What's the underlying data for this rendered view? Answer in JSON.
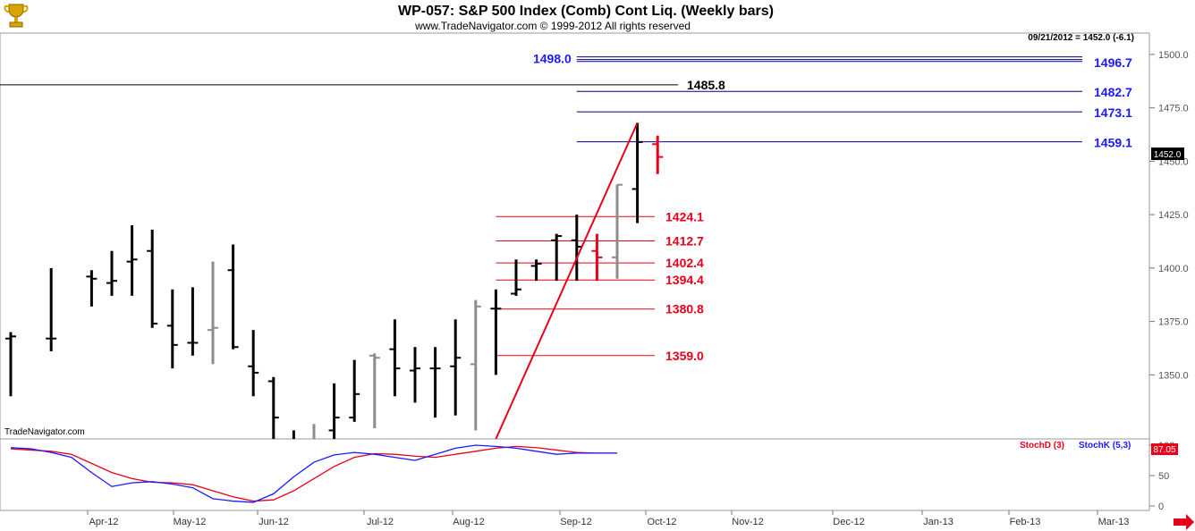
{
  "logo": {
    "name": "trophy-logo"
  },
  "header": {
    "title": "WP-057:  S&P 500 Index (Comb) Cont Liq.  (Weekly bars)",
    "subtitle": "www.TradeNavigator.com © 1999-2012 All rights reserved"
  },
  "info": {
    "date_readout": "09/21/2012 = 1452.0 (-6.1)",
    "price_box": "1452.0",
    "watermark": "TradeNavigator.com"
  },
  "colors": {
    "up_bar": "#000000",
    "gray_bar": "#8c8c8c",
    "red": "#e8001a",
    "blue": "#1a1aff",
    "navy": "#000080",
    "stoch_d": "#e8001a",
    "stoch_k": "#1a1aff"
  },
  "chart_data": [
    {
      "type": "ohlc",
      "title": "WP-057:  S&P 500 Index (Comb) Cont Liq.  (Weekly bars)",
      "ylim": [
        1320,
        1510
      ],
      "y_ticks": [
        "1500.0",
        "1475.0",
        "1450.0",
        "1425.0",
        "1400.0",
        "1375.0",
        "1350.0"
      ],
      "x_labels": [
        "Apr-12",
        "May-12",
        "Jun-12",
        "Jul-12",
        "Aug-12",
        "Sep-12",
        "Oct-12",
        "Nov-12",
        "Dec-12",
        "Jan-13",
        "Feb-13",
        "Mar-13"
      ],
      "bars": [
        {
          "w": 0,
          "o": 1367,
          "h": 1370,
          "l": 1340,
          "c": 1368,
          "style": "black"
        },
        {
          "w": 2,
          "o": 1367,
          "h": 1400,
          "l": 1361,
          "c": 1367,
          "style": "black"
        },
        {
          "w": 4,
          "o": 1396,
          "h": 1399,
          "l": 1382,
          "c": 1395,
          "style": "black"
        },
        {
          "w": 5,
          "o": 1393,
          "h": 1408,
          "l": 1387,
          "c": 1394,
          "style": "black"
        },
        {
          "w": 6,
          "o": 1403,
          "h": 1420,
          "l": 1387,
          "c": 1404,
          "style": "black"
        },
        {
          "w": 7,
          "o": 1408,
          "h": 1418,
          "l": 1372,
          "c": 1374,
          "style": "black"
        },
        {
          "w": 8,
          "o": 1373,
          "h": 1390,
          "l": 1353,
          "c": 1364,
          "style": "black"
        },
        {
          "w": 9,
          "o": 1365,
          "h": 1391,
          "l": 1359,
          "c": 1365,
          "style": "black"
        },
        {
          "w": 10,
          "o": 1371,
          "h": 1403,
          "l": 1355,
          "c": 1372,
          "style": "gray"
        },
        {
          "w": 11,
          "o": 1399,
          "h": 1411,
          "l": 1362,
          "c": 1363,
          "style": "black"
        },
        {
          "w": 12,
          "o": 1354,
          "h": 1371,
          "l": 1340,
          "c": 1351,
          "style": "black"
        },
        {
          "w": 13,
          "o": 1347,
          "h": 1349,
          "l": 1320,
          "c": 1330,
          "style": "black"
        },
        {
          "w": 14,
          "o": 1318,
          "h": 1324,
          "l": 1310,
          "c": 1315,
          "style": "black"
        },
        {
          "w": 15,
          "o": 1316,
          "h": 1327,
          "l": 1310,
          "c": 1318,
          "style": "gray"
        },
        {
          "w": 16,
          "o": 1324,
          "h": 1346,
          "l": 1320,
          "c": 1330,
          "style": "black"
        },
        {
          "w": 17,
          "o": 1330,
          "h": 1357,
          "l": 1328,
          "c": 1341,
          "style": "black"
        },
        {
          "w": 18,
          "o": 1359,
          "h": 1360,
          "l": 1325,
          "c": 1358,
          "style": "gray"
        },
        {
          "w": 19,
          "o": 1362,
          "h": 1376,
          "l": 1340,
          "c": 1353,
          "style": "black"
        },
        {
          "w": 20,
          "o": 1352,
          "h": 1363,
          "l": 1337,
          "c": 1353,
          "style": "black"
        },
        {
          "w": 21,
          "o": 1353,
          "h": 1363,
          "l": 1330,
          "c": 1353,
          "style": "black"
        },
        {
          "w": 22,
          "o": 1354,
          "h": 1376,
          "l": 1331,
          "c": 1358,
          "style": "black"
        },
        {
          "w": 23,
          "o": 1355,
          "h": 1385,
          "l": 1324,
          "c": 1382,
          "style": "gray"
        },
        {
          "w": 24,
          "o": 1381,
          "h": 1390,
          "l": 1350,
          "c": 1381,
          "style": "black"
        },
        {
          "w": 25,
          "o": 1388,
          "h": 1404,
          "l": 1387,
          "c": 1390,
          "style": "black"
        },
        {
          "w": 26,
          "o": 1401,
          "h": 1404,
          "l": 1394,
          "c": 1402,
          "style": "black"
        },
        {
          "w": 27,
          "o": 1413,
          "h": 1416,
          "l": 1394,
          "c": 1415,
          "style": "black"
        },
        {
          "w": 28,
          "o": 1413,
          "h": 1425,
          "l": 1394,
          "c": 1410,
          "style": "black"
        },
        {
          "w": 29,
          "o": 1408,
          "h": 1416,
          "l": 1394,
          "c": 1405,
          "style": "red"
        },
        {
          "w": 30,
          "o": 1405,
          "h": 1439,
          "l": 1395,
          "c": 1439,
          "style": "gray"
        },
        {
          "w": 31,
          "o": 1437,
          "h": 1468,
          "l": 1421,
          "c": 1459,
          "style": "black"
        },
        {
          "w": 32,
          "o": 1458,
          "h": 1462,
          "l": 1444,
          "c": 1452,
          "style": "red"
        }
      ],
      "trendline": {
        "from": {
          "w": 24,
          "price": 1320
        },
        "to": {
          "w": 31,
          "price": 1468
        },
        "color": "#e8001a"
      },
      "levels": [
        {
          "value": 1498.0,
          "label": "1498.0",
          "color": "blue",
          "side": "left",
          "from_w": 28,
          "double": true
        },
        {
          "value": 1496.7,
          "label": "1496.7",
          "color": "blue",
          "side": "right",
          "from_w": 28
        },
        {
          "value": 1485.8,
          "label": "1485.8",
          "color": "black",
          "side": "mid",
          "from_w": -1,
          "to_w": 34
        },
        {
          "value": 1482.7,
          "label": "1482.7",
          "color": "blue",
          "side": "right",
          "from_w": 28
        },
        {
          "value": 1473.1,
          "label": "1473.1",
          "color": "blue",
          "side": "right",
          "from_w": 28
        },
        {
          "value": 1459.1,
          "label": "1459.1",
          "color": "blue",
          "side": "right",
          "from_w": 28
        },
        {
          "value": 1424.1,
          "label": "1424.1",
          "color": "red",
          "side": "mid",
          "from_w": 24,
          "to_w": 33
        },
        {
          "value": 1412.7,
          "label": "1412.7",
          "color": "red",
          "side": "mid",
          "from_w": 24,
          "to_w": 33
        },
        {
          "value": 1402.4,
          "label": "1402.4",
          "color": "red",
          "side": "mid",
          "from_w": 24,
          "to_w": 33
        },
        {
          "value": 1394.4,
          "label": "1394.4",
          "color": "red",
          "side": "mid",
          "from_w": 24,
          "to_w": 33
        },
        {
          "value": 1380.8,
          "label": "1380.8",
          "color": "red",
          "side": "mid",
          "from_w": 24,
          "to_w": 33
        },
        {
          "value": 1359.0,
          "label": "1359.0",
          "color": "red",
          "side": "mid",
          "from_w": 24,
          "to_w": 33
        }
      ]
    },
    {
      "type": "line",
      "series": [
        {
          "name": "StochD (3)",
          "color": "#e8001a",
          "values": [
            94,
            92,
            90,
            85,
            70,
            55,
            45,
            39,
            38,
            35,
            25,
            15,
            8,
            10,
            25,
            45,
            65,
            80,
            86,
            85,
            82,
            80,
            85,
            90,
            95,
            98,
            96,
            92,
            88,
            87,
            87
          ]
        },
        {
          "name": "StochK (5,3)",
          "color": "#1a1aff",
          "values": [
            96,
            94,
            88,
            80,
            55,
            32,
            38,
            40,
            36,
            30,
            12,
            8,
            6,
            20,
            48,
            72,
            84,
            88,
            85,
            80,
            75,
            85,
            95,
            100,
            98,
            95,
            90,
            85,
            87,
            87,
            87
          ]
        }
      ],
      "ylim": [
        0,
        100
      ],
      "y_ticks": [
        "100",
        "50",
        "0"
      ],
      "current_value": "87.05"
    }
  ]
}
